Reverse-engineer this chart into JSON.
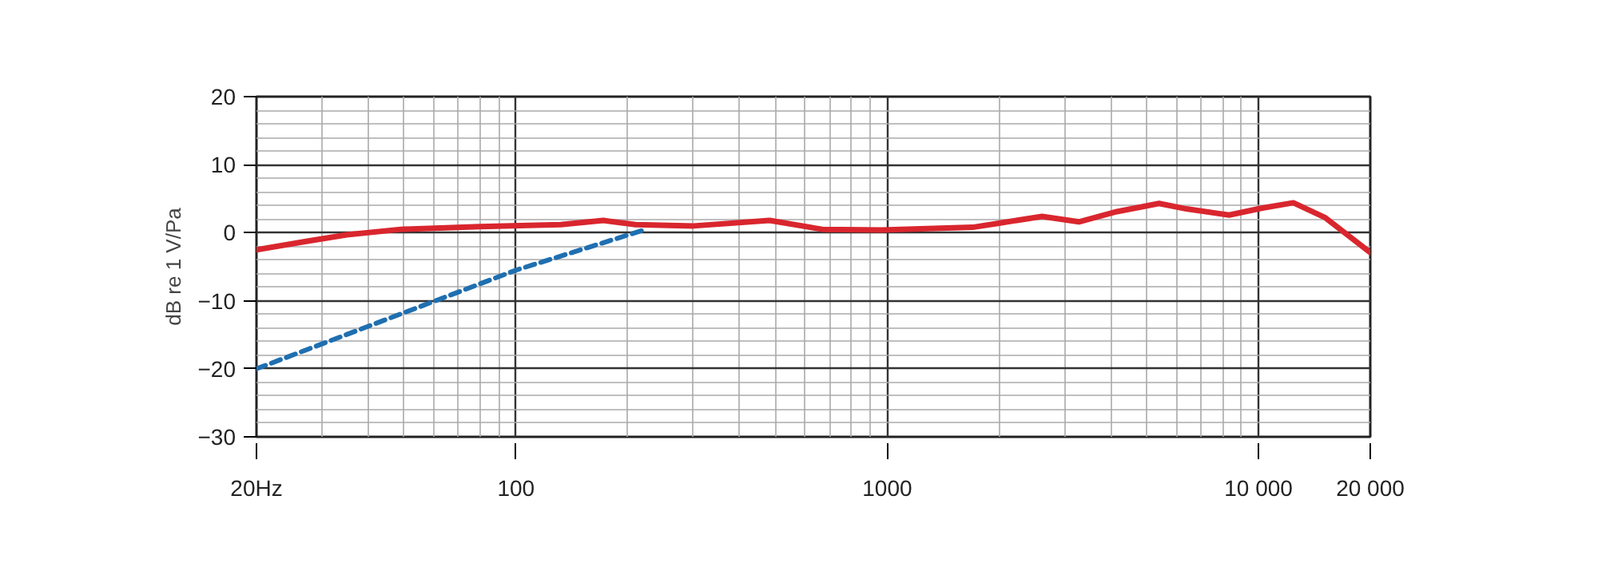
{
  "chart_data": {
    "type": "line",
    "ylabel": "dB re 1 V/Pa",
    "log": "x",
    "xlim": [
      20,
      20000
    ],
    "xticks": [
      {
        "value": 20,
        "label": "20Hz"
      },
      100,
      1000,
      {
        "value": 10000,
        "label": "10 000"
      },
      {
        "value": 20000,
        "label": "20 000"
      }
    ],
    "ylim": [
      -30,
      20
    ],
    "yticks": [
      -30,
      -20,
      -10,
      0,
      10,
      20
    ],
    "grid": true,
    "series": [
      {
        "color": "#d9262e",
        "line_style": "solid",
        "x": [
          20,
          27,
          35,
          49,
          80,
          132,
          172,
          210,
          301,
          482,
          668,
          965,
          1698,
          2000,
          2612,
          3281,
          4155,
          5395,
          6394,
          8337,
          10170,
          12410,
          15140,
          20000
        ],
        "values": [
          -2.5,
          -1.3,
          -0.3,
          0.5,
          0.9,
          1.2,
          1.8,
          1.2,
          1,
          1.8,
          0.5,
          0.4,
          0.8,
          1.4,
          2.4,
          1.6,
          3.1,
          4.3,
          3.5,
          2.6,
          3.6,
          4.4,
          2.2,
          -2.9
        ]
      },
      {
        "color": "#1f6fb0",
        "line_style": "dashed",
        "x": [
          20,
          100,
          224
        ],
        "values": [
          -20,
          -5.5,
          0.5
        ]
      }
    ]
  }
}
